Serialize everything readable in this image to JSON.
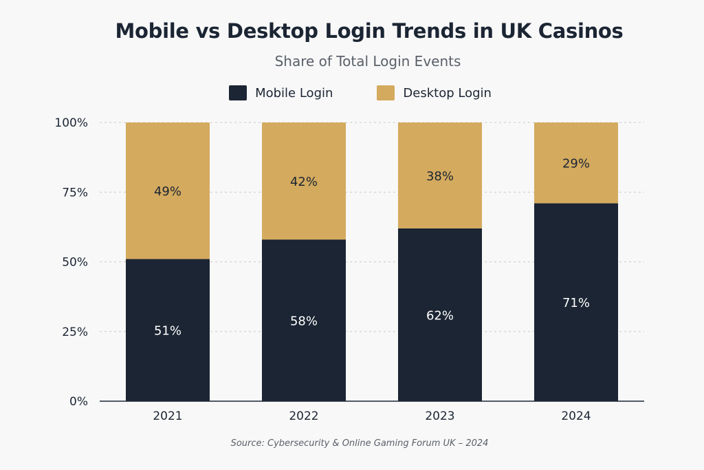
{
  "title": "Mobile vs Desktop Login Trends in UK Casinos",
  "subtitle": "Share of Total Login Events",
  "source": "Source: Cybersecurity & Online Gaming Forum UK – 2024",
  "legend": [
    {
      "label": "Mobile Login",
      "color": "#1b2533"
    },
    {
      "label": "Desktop Login",
      "color": "#d4aa5e"
    }
  ],
  "chart_data": {
    "type": "bar",
    "stacked": true,
    "title": "Mobile vs Desktop Login Trends in UK Casinos",
    "subtitle": "Share of Total Login Events",
    "categories": [
      "2021",
      "2022",
      "2023",
      "2024"
    ],
    "series": [
      {
        "name": "Mobile Login",
        "values": [
          51,
          58,
          62,
          71
        ],
        "color": "#1b2533",
        "label_color": "#ffffff"
      },
      {
        "name": "Desktop Login",
        "values": [
          49,
          42,
          38,
          29
        ],
        "color": "#d4aa5e",
        "label_color": "#1b2533"
      }
    ],
    "y_ticks": [
      "0%",
      "25%",
      "50%",
      "75%",
      "100%"
    ],
    "ylim": [
      0,
      100
    ],
    "grid": true,
    "legend_position": "top"
  }
}
